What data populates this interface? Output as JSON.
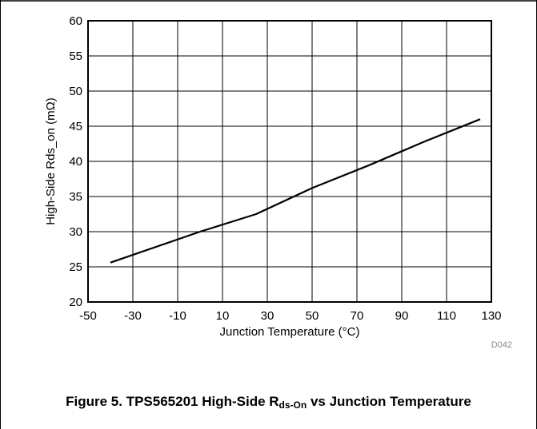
{
  "chart_data": {
    "type": "line",
    "title": "",
    "xlabel": "Junction Temperature (°C)",
    "ylabel": "High-Side Rds_on (mΩ)",
    "xlim": [
      -50,
      130
    ],
    "ylim": [
      20,
      60
    ],
    "x_ticks": [
      -50,
      -30,
      -10,
      10,
      30,
      50,
      70,
      90,
      110,
      130
    ],
    "y_ticks": [
      20,
      25,
      30,
      35,
      40,
      45,
      50,
      55,
      60
    ],
    "grid": true,
    "legend": "none",
    "series": [
      {
        "x": [
          -40,
          0,
          25,
          50,
          75,
          100,
          125
        ],
        "y": [
          25.6,
          30.0,
          32.5,
          36.2,
          39.4,
          42.8,
          46.0
        ]
      }
    ],
    "colors": {
      "line": "#000000",
      "grid": "#000000",
      "axis": "#000000"
    }
  },
  "doc_code": "D042",
  "caption": {
    "prefix": "Figure 5. TPS565201 High-Side R",
    "subscript": "ds-On",
    "suffix": " vs Junction Temperature"
  }
}
